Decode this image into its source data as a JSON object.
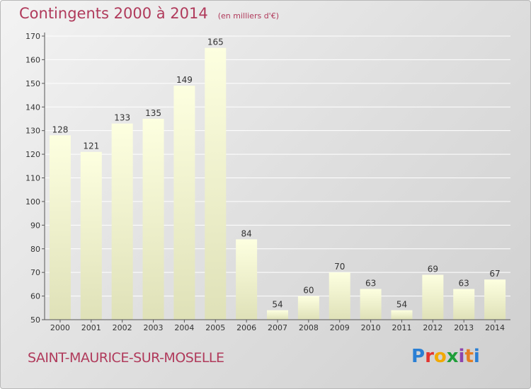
{
  "header": {
    "title": "Contingents 2000 à 2014",
    "subtitle": "(en milliers d'€)"
  },
  "footer": {
    "town": "SAINT-MAURICE-SUR-MOSELLE",
    "logo": {
      "text": "Proxiti",
      "colors": [
        "#2a7fd4",
        "#e3342f",
        "#f2a900",
        "#1f9e3a",
        "#8e44ad",
        "#e67e22",
        "#2a7fd4"
      ]
    }
  },
  "colors": {
    "title": "#b03a5b",
    "bar_top": "#fdffe0",
    "bar_bottom": "#dfe1b8",
    "axis": "#555555",
    "tick_text": "#333333",
    "gridline": "#ffffff"
  },
  "chart_data": {
    "type": "bar",
    "categories": [
      "2000",
      "2001",
      "2002",
      "2003",
      "2004",
      "2005",
      "2006",
      "2007",
      "2008",
      "2009",
      "2010",
      "2011",
      "2012",
      "2013",
      "2014"
    ],
    "values": [
      128,
      121,
      133,
      135,
      149,
      165,
      84,
      54,
      60,
      70,
      63,
      54,
      69,
      63,
      67
    ],
    "ylim": [
      50,
      170
    ],
    "yticks": [
      50,
      60,
      70,
      80,
      90,
      100,
      110,
      120,
      130,
      140,
      150,
      160,
      170
    ],
    "title": "Contingents 2000 à 2014",
    "subtitle": "(en milliers d'€)",
    "xlabel": "",
    "ylabel": "",
    "grid": true,
    "data_labels": true
  }
}
